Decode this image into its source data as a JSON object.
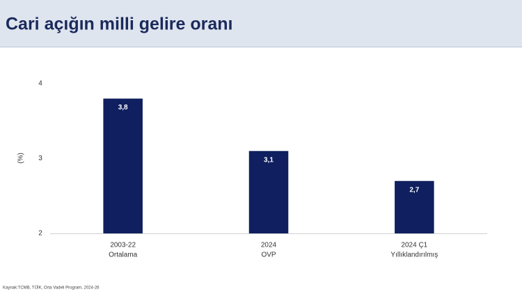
{
  "chart_data": {
    "type": "bar",
    "title": "Cari açığın milli gelire oranı",
    "y_label": "(%)",
    "categories": [
      [
        "2003-22",
        "Ortalama"
      ],
      [
        "2024",
        "OVP"
      ],
      [
        "2024 Ç1",
        "Yıllıklandırılmış"
      ]
    ],
    "values": [
      3.8,
      3.1,
      2.7
    ],
    "value_labels": [
      "3,8",
      "3,1",
      "2,7"
    ],
    "color": "#0f1f5f",
    "ylim": [
      2,
      4
    ],
    "yticks": [
      2,
      3,
      4
    ],
    "grid": false,
    "source": "Kaynak:TCMB, TÜİK, Orta Vadeli Program, 2024-26"
  }
}
